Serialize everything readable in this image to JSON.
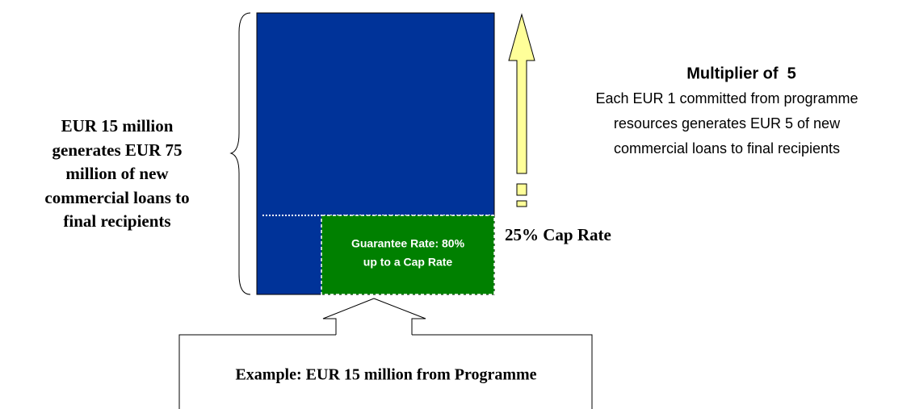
{
  "left_text": [
    "EUR 15 million",
    "generates EUR 75",
    "million of new",
    "commercial loans to",
    "final recipients"
  ],
  "guarantee_box": [
    "Guarantee Rate: 80%",
    "up to a Cap Rate"
  ],
  "cap_rate_label": "25% Cap Rate",
  "multiplier": {
    "title": "Multiplier of  5",
    "lines": [
      "Each EUR 1 committed from programme",
      "resources generates EUR 5 of new",
      "commercial loans to final recipients"
    ]
  },
  "example_box": "Example: EUR 15 million from Programme"
}
